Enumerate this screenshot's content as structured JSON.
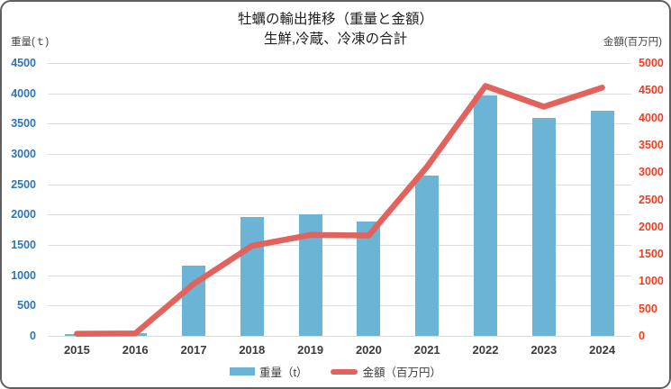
{
  "title": {
    "line1": "牡蠣の輸出推移（重量と金額）",
    "line2": "生鮮,冷蔵、冷凍の合計"
  },
  "legend": {
    "weight_label": "重量（t）",
    "amount_label": "金額（百万円）"
  },
  "chart_data": {
    "type": "combo-bar-line",
    "title": "牡蠣の輸出推移（重量と金額） 生鮮,冷蔵、冷凍の合計",
    "categories": [
      "2015",
      "2016",
      "2017",
      "2018",
      "2019",
      "2020",
      "2021",
      "2022",
      "2023",
      "2024"
    ],
    "series": [
      {
        "name": "重量（t）",
        "type": "bar",
        "axis": "left",
        "color": "#6cb4d6",
        "values": [
          20,
          40,
          1160,
          1960,
          2000,
          1880,
          2650,
          3970,
          3600,
          3710
        ]
      },
      {
        "name": "金額（百万円）",
        "type": "line",
        "axis": "right",
        "color": "#e2635d",
        "values": [
          40,
          45,
          950,
          1650,
          1850,
          1840,
          3100,
          4580,
          4200,
          4550
        ]
      }
    ],
    "left_axis": {
      "title": "重量(ｔ)",
      "min": 0,
      "max": 4500,
      "step": 500,
      "tick_labels": [
        "4500",
        "4000",
        "3500",
        "3000",
        "2500",
        "2000",
        "1500",
        "1000",
        "500",
        "0"
      ],
      "label_color": "#2e74b5"
    },
    "right_axis": {
      "title": "金額(百万円)",
      "min": 0,
      "max": 5000,
      "step": 500,
      "tick_labels": [
        "5000",
        "4500",
        "4000",
        "3500",
        "3000",
        "2500",
        "2000",
        "1500",
        "1000",
        "500",
        "0"
      ],
      "label_color": "#f43d1e"
    },
    "grid": true,
    "gridline_color": "#dcdcdc",
    "legend_position": "bottom"
  }
}
